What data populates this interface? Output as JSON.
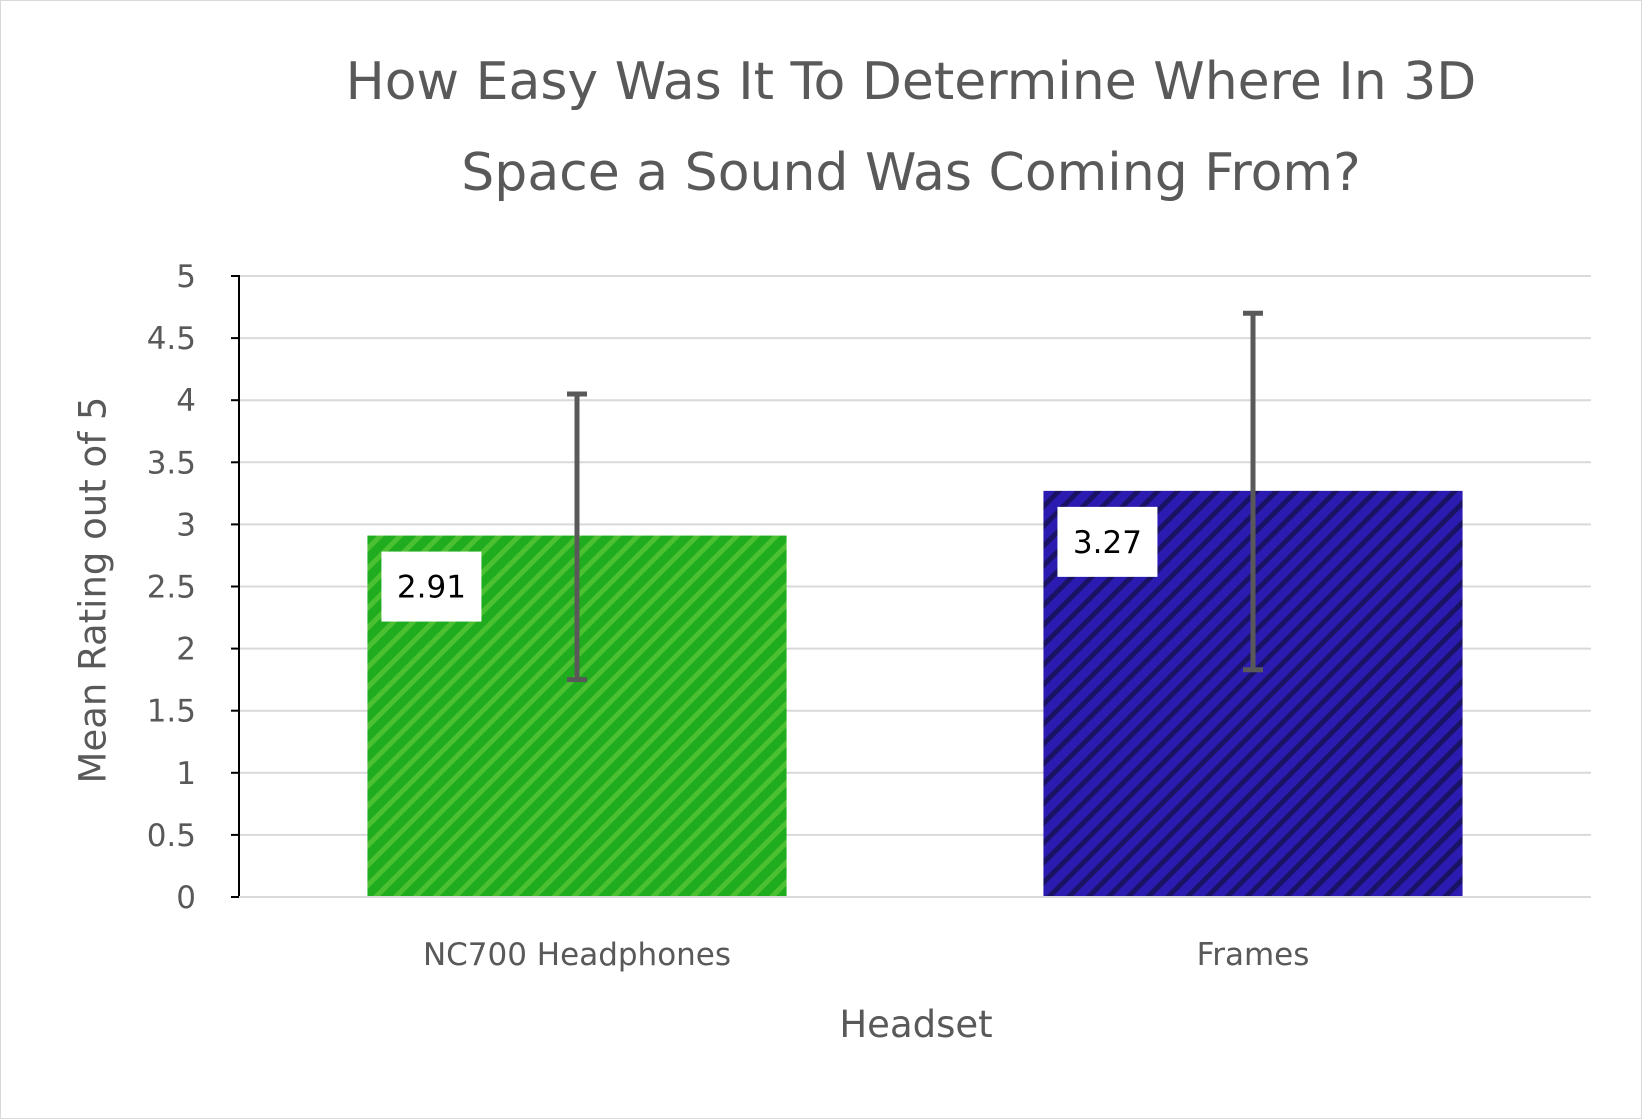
{
  "chart_data": {
    "type": "bar",
    "title_lines": [
      "How Easy Was It To Determine Where In 3D",
      "Space a Sound Was Coming From?"
    ],
    "xlabel": "Headset",
    "ylabel": "Mean Rating out of 5",
    "categories": [
      "NC700 Headphones",
      "Frames"
    ],
    "values": [
      2.91,
      3.27
    ],
    "data_labels": [
      "2.91",
      "3.27"
    ],
    "error_bars": [
      {
        "low": 1.75,
        "high": 4.05
      },
      {
        "low": 1.83,
        "high": 4.7
      }
    ],
    "colors": [
      "#1fad1f",
      "#2b1bb0"
    ],
    "ylim": [
      0,
      5
    ],
    "yticks": [
      0,
      0.5,
      1,
      1.5,
      2,
      2.5,
      3,
      3.5,
      4,
      4.5,
      5
    ],
    "ytick_labels": [
      "0",
      "0.5",
      "1",
      "1.5",
      "2",
      "2.5",
      "3",
      "3.5",
      "4",
      "4.5",
      "5"
    ],
    "grid": true,
    "legend": "none"
  }
}
